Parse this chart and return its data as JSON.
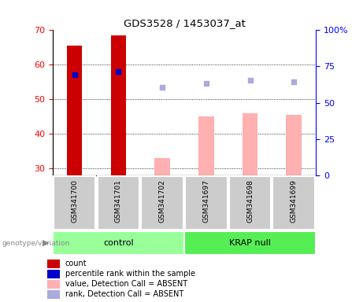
{
  "title": "GDS3528 / 1453037_at",
  "samples": [
    "GSM341700",
    "GSM341701",
    "GSM341702",
    "GSM341697",
    "GSM341698",
    "GSM341699"
  ],
  "bar_values_present": [
    65.5,
    68.5,
    null,
    null,
    null,
    null
  ],
  "bar_values_absent": [
    null,
    null,
    33.0,
    45.0,
    46.0,
    45.5
  ],
  "rank_present": [
    57.0,
    58.0,
    null,
    null,
    null,
    null
  ],
  "rank_absent": [
    null,
    null,
    53.5,
    54.5,
    55.5,
    55.0
  ],
  "ylim_left": [
    28,
    70
  ],
  "ylim_right": [
    0,
    100
  ],
  "yticks_left": [
    30,
    40,
    50,
    60,
    70
  ],
  "yticks_right": [
    0,
    25,
    50,
    75,
    100
  ],
  "bar_color_present": "#cc0000",
  "bar_color_absent": "#ffb0b0",
  "rank_color_present": "#0000cc",
  "rank_color_absent": "#aaaadd",
  "control_color": "#99ff99",
  "krap_color": "#55ee55",
  "sample_bg_color": "#cccccc",
  "plot_bg_color": "#ffffff",
  "legend_labels": [
    "count",
    "percentile rank within the sample",
    "value, Detection Call = ABSENT",
    "rank, Detection Call = ABSENT"
  ],
  "legend_colors": [
    "#cc0000",
    "#0000cc",
    "#ffb0b0",
    "#aaaadd"
  ],
  "bar_width": 0.35
}
